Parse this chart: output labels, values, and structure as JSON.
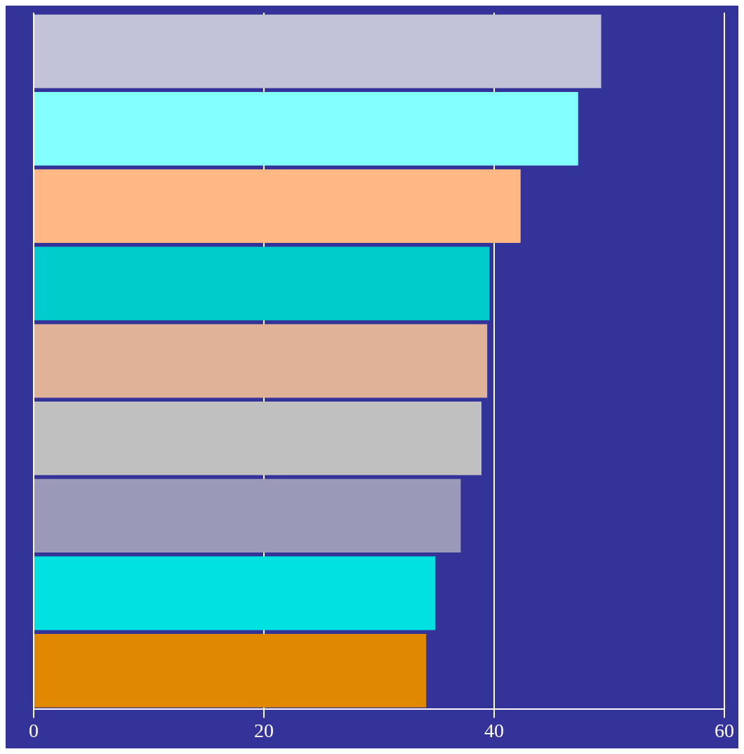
{
  "chart_data": {
    "type": "bar",
    "orientation": "horizontal",
    "categories": [
      null,
      null,
      null,
      null,
      null,
      null,
      null,
      null,
      null
    ],
    "values": [
      49.3,
      47.3,
      42.3,
      39.6,
      39.4,
      38.9,
      37.1,
      34.9,
      34.1
    ],
    "colors": [
      "#c2c3d9",
      "#84ffff",
      "#ffb884",
      "#00cccc",
      "#e0b399",
      "#c0c0c0",
      "#9a9ab8",
      "#00e1e1",
      "#e08800"
    ],
    "xlim": [
      0,
      60
    ],
    "xticks": [
      0,
      20,
      40,
      60
    ],
    "grid": "x",
    "legend": false
  }
}
